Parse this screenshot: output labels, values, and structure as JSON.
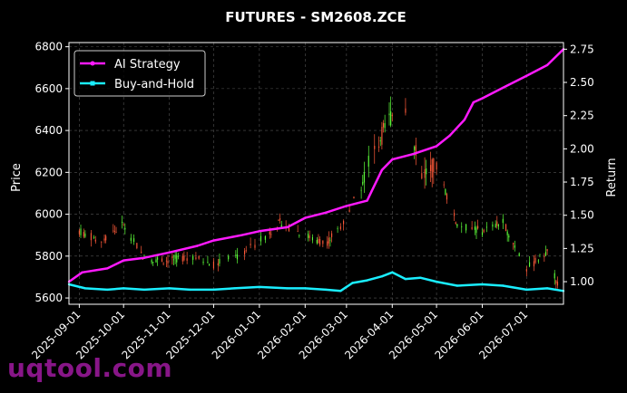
{
  "chart_data": {
    "type": "line",
    "title": "FUTURES - SM2608.ZCE",
    "ylabel": "Price",
    "y2label": "Return",
    "ylim": [
      5570,
      6820
    ],
    "y2lim": [
      0.83,
      2.8
    ],
    "xlim": [
      "2025-08-25",
      "2026-07-26"
    ],
    "yticks": [
      "5600",
      "5800",
      "6000",
      "6200",
      "6400",
      "6600",
      "6800"
    ],
    "y2ticks": [
      "1.00",
      "1.25",
      "1.50",
      "1.75",
      "2.00",
      "2.25",
      "2.50",
      "2.75"
    ],
    "xticks": [
      "2025-09-01",
      "2025-10-01",
      "2025-11-01",
      "2025-12-01",
      "2026-01-01",
      "2026-02-01",
      "2026-03-01",
      "2026-04-01",
      "2026-05-01",
      "2026-06-01",
      "2026-07-01"
    ],
    "grid": true,
    "legend": "top-left",
    "colors": {
      "up": "#5dff3a",
      "down": "#ff5a3a",
      "ai": "#ff1aff",
      "bh": "#1aeeff",
      "grid": "#555555"
    },
    "series": [
      {
        "name": "AI Strategy",
        "x": [
          "2025-08-25",
          "2025-09-03",
          "2025-09-20",
          "2025-10-01",
          "2025-10-15",
          "2025-11-01",
          "2025-11-20",
          "2025-12-01",
          "2025-12-20",
          "2026-01-01",
          "2026-01-20",
          "2026-02-01",
          "2026-02-15",
          "2026-03-01",
          "2026-03-15",
          "2026-03-18",
          "2026-03-25",
          "2026-04-01",
          "2026-04-15",
          "2026-05-01",
          "2026-05-10",
          "2026-05-20",
          "2026-05-26",
          "2026-06-01",
          "2026-06-15",
          "2026-07-01",
          "2026-07-15",
          "2026-07-26"
        ],
        "values": [
          1.0,
          1.07,
          1.1,
          1.16,
          1.18,
          1.22,
          1.27,
          1.31,
          1.35,
          1.38,
          1.41,
          1.48,
          1.52,
          1.57,
          1.61,
          1.68,
          1.84,
          1.92,
          1.96,
          2.02,
          2.1,
          2.22,
          2.35,
          2.38,
          2.46,
          2.55,
          2.63,
          2.75
        ]
      },
      {
        "name": "Buy-and-Hold",
        "x": [
          "2025-08-25",
          "2025-09-05",
          "2025-09-20",
          "2025-10-01",
          "2025-10-15",
          "2025-11-01",
          "2025-11-15",
          "2025-12-01",
          "2025-12-15",
          "2026-01-01",
          "2026-01-20",
          "2026-02-01",
          "2026-02-15",
          "2026-02-25",
          "2026-03-05",
          "2026-03-15",
          "2026-03-25",
          "2026-04-01",
          "2026-04-10",
          "2026-04-20",
          "2026-05-01",
          "2026-05-15",
          "2026-06-01",
          "2026-06-15",
          "2026-07-01",
          "2026-07-15",
          "2026-07-26"
        ],
        "values": [
          0.98,
          0.95,
          0.94,
          0.95,
          0.94,
          0.95,
          0.94,
          0.94,
          0.95,
          0.96,
          0.95,
          0.95,
          0.94,
          0.93,
          0.99,
          1.01,
          1.04,
          1.07,
          1.02,
          1.03,
          1.0,
          0.97,
          0.98,
          0.97,
          0.94,
          0.95,
          0.93
        ]
      }
    ],
    "ohlc_anchors": {
      "dates": [
        "2025-09-01",
        "2025-09-15",
        "2025-10-01",
        "2025-10-15",
        "2025-11-01",
        "2025-11-15",
        "2025-12-01",
        "2025-12-15",
        "2026-01-01",
        "2026-01-15",
        "2026-02-01",
        "2026-02-15",
        "2026-03-01",
        "2026-03-15",
        "2026-04-01",
        "2026-04-10",
        "2026-04-20",
        "2026-05-01",
        "2026-05-15",
        "2026-06-01",
        "2026-06-15",
        "2026-07-01",
        "2026-07-15",
        "2026-07-24"
      ],
      "close": [
        5920,
        5870,
        5950,
        5790,
        5780,
        5800,
        5760,
        5790,
        5870,
        5960,
        5900,
        5860,
        5980,
        6230,
        6480,
        6520,
        6190,
        6230,
        5950,
        5920,
        5960,
        5740,
        5820,
        5620
      ]
    }
  }
}
